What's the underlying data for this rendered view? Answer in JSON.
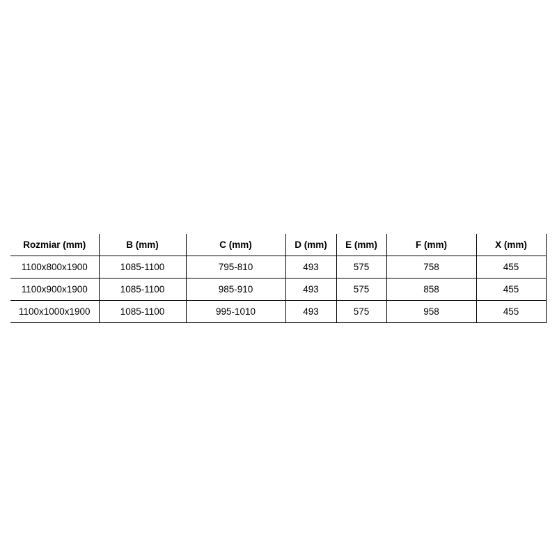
{
  "table": {
    "headers": [
      "Rozmiar (mm)",
      "B (mm)",
      "C (mm)",
      "D (mm)",
      "E (mm)",
      "F (mm)",
      "X (mm)"
    ],
    "rows": [
      [
        "1100x800x1900",
        "1085-1100",
        "795-810",
        "493",
        "575",
        "758",
        "455"
      ],
      [
        "1100x900x1900",
        "1085-1100",
        "985-910",
        "493",
        "575",
        "858",
        "455"
      ],
      [
        "1100x1000x1900",
        "1085-1100",
        "995-1010",
        "493",
        "575",
        "958",
        "455"
      ]
    ]
  }
}
